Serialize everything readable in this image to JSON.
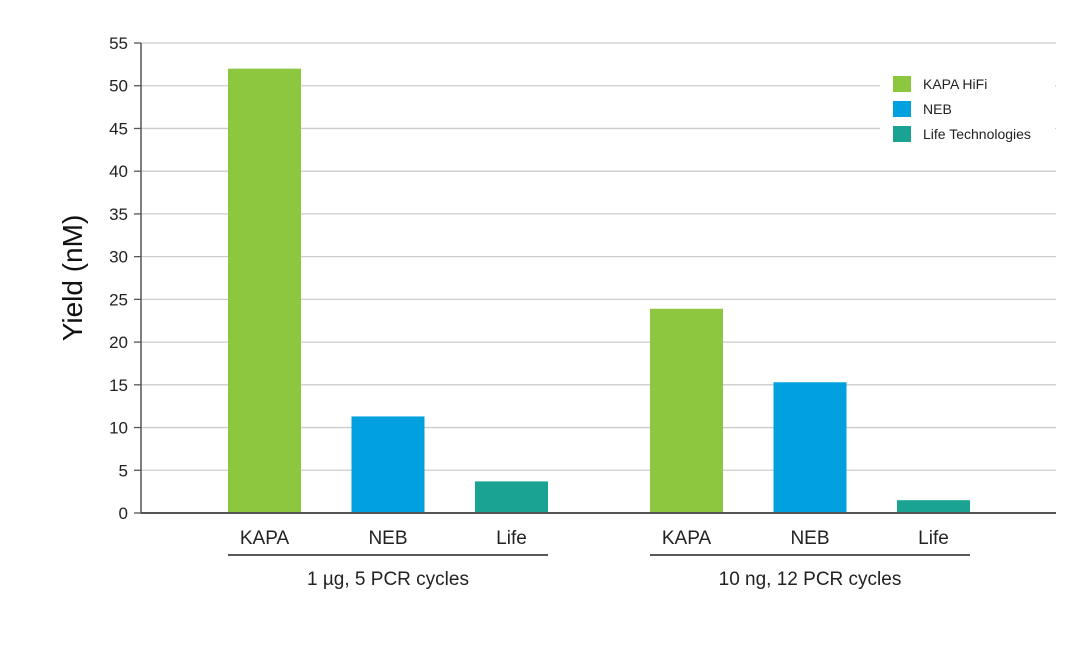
{
  "chart_data": {
    "type": "bar",
    "ylabel": "Yield (nM)",
    "ylim": [
      0,
      55
    ],
    "yticks": [
      0,
      5,
      10,
      15,
      20,
      25,
      30,
      35,
      40,
      45,
      50,
      55
    ],
    "grid": true,
    "legend_position": "top-right",
    "groups": [
      {
        "label": "1 µg, 5 PCR cycles",
        "bars": [
          {
            "label": "KAPA",
            "series": "KAPA HiFi",
            "value": 52
          },
          {
            "label": "NEB",
            "series": "NEB",
            "value": 11.3
          },
          {
            "label": "Life",
            "series": "Life Technologies",
            "value": 3.7
          }
        ]
      },
      {
        "label": "10 ng, 12 PCR cycles",
        "bars": [
          {
            "label": "KAPA",
            "series": "KAPA HiFi",
            "value": 23.9
          },
          {
            "label": "NEB",
            "series": "NEB",
            "value": 15.3
          },
          {
            "label": "Life",
            "series": "Life Technologies",
            "value": 1.5
          }
        ]
      }
    ],
    "series": [
      {
        "name": "KAPA HiFi",
        "color": "#8dc63f"
      },
      {
        "name": "NEB",
        "color": "#00a1de"
      },
      {
        "name": "Life Technologies",
        "color": "#1aa393"
      }
    ],
    "axis_color": "#555555",
    "grid_color": "#cccccc"
  }
}
